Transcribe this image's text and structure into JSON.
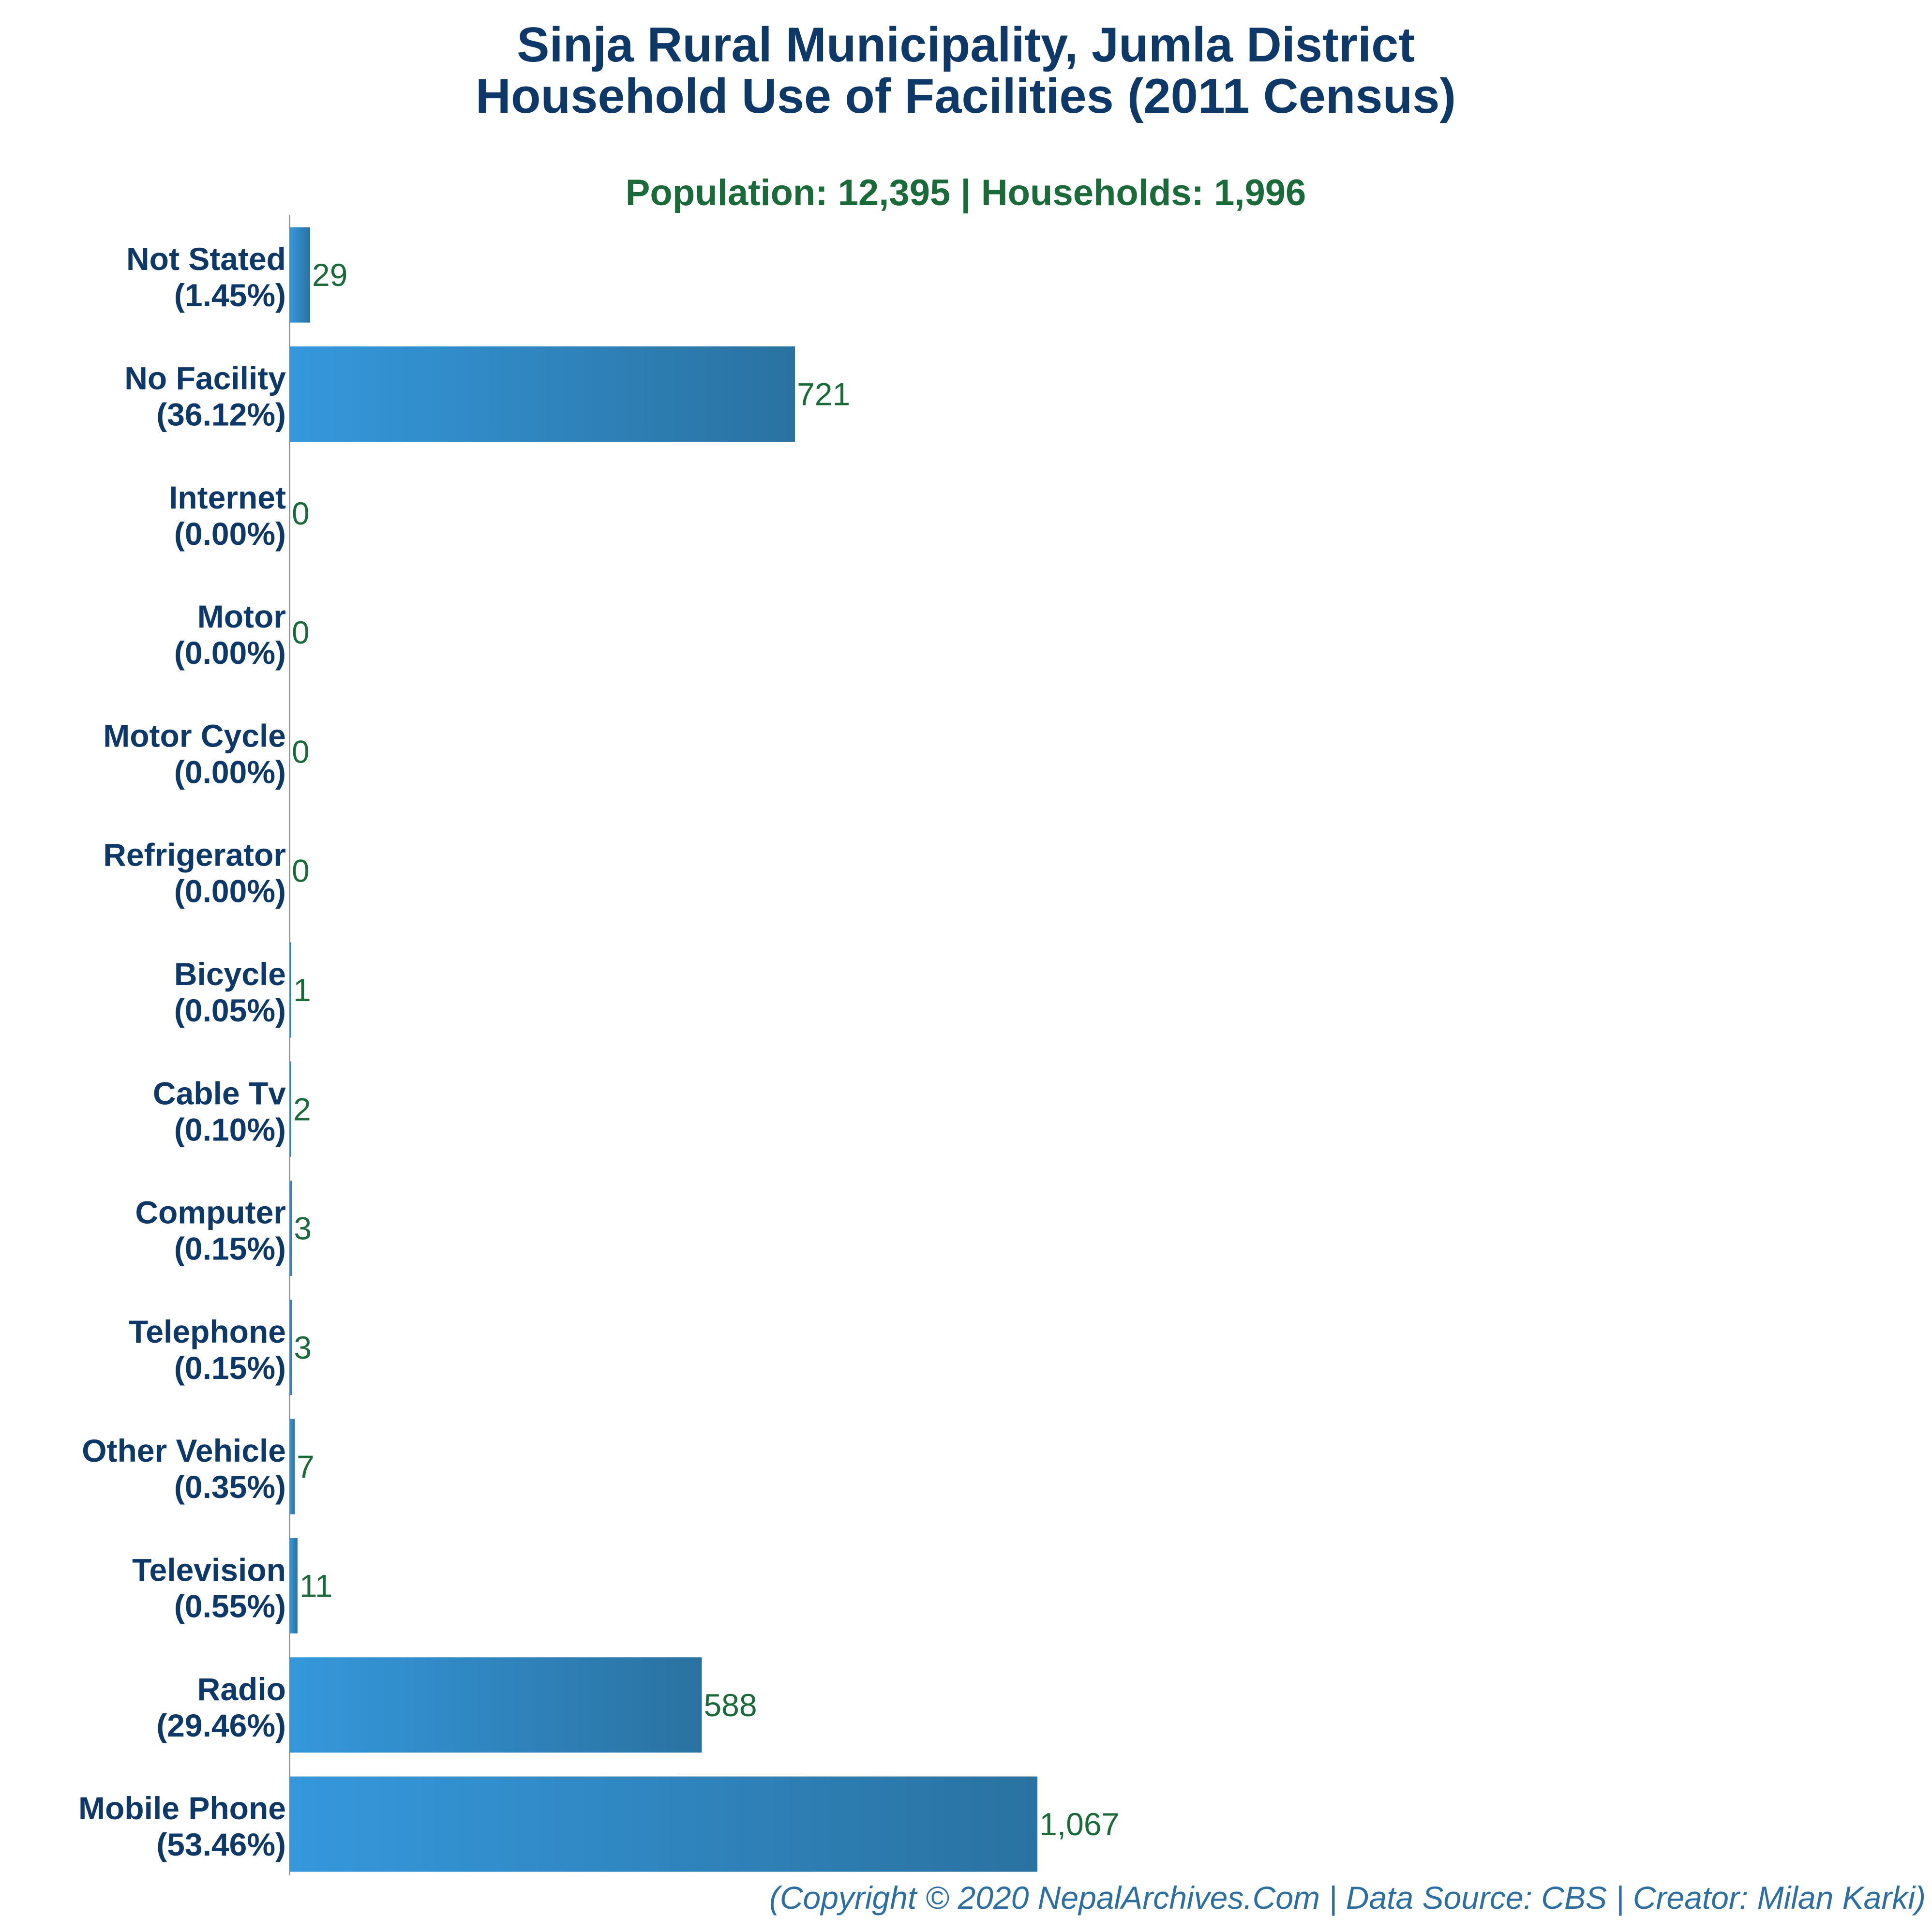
{
  "colors": {
    "title": "#0d3868",
    "subtitle": "#1b6b3a",
    "value": "#1b6b3a",
    "footer": "#2d6ea3",
    "bar_light": "#3598dc",
    "bar_dark": "#2a72a1",
    "axis": "#7f7f7f"
  },
  "chart_data": {
    "type": "bar",
    "orientation": "horizontal",
    "title": "Sinja Rural Municipality, Jumla District",
    "title_line2": "Household Use of Facilities (2011 Census)",
    "subtitle": "Population: 12,395 | Households: 1,996",
    "categories": [
      "Not Stated",
      "No Facility",
      "Internet",
      "Motor",
      "Motor Cycle",
      "Refrigerator",
      "Bicycle",
      "Cable Tv",
      "Computer",
      "Telephone",
      "Other Vehicle",
      "Television",
      "Radio",
      "Mobile Phone"
    ],
    "percent_labels": [
      "(1.45%)",
      "(36.12%)",
      "(0.00%)",
      "(0.00%)",
      "(0.00%)",
      "(0.00%)",
      "(0.05%)",
      "(0.10%)",
      "(0.15%)",
      "(0.15%)",
      "(0.35%)",
      "(0.55%)",
      "(29.46%)",
      "(53.46%)"
    ],
    "values": [
      29,
      721,
      0,
      0,
      0,
      0,
      1,
      2,
      3,
      3,
      7,
      11,
      588,
      1067
    ],
    "value_labels": [
      "29",
      "721",
      "0",
      "0",
      "0",
      "0",
      "1",
      "2",
      "3",
      "3",
      "7",
      "11",
      "588",
      "1,067"
    ],
    "xlim": [
      0,
      2100
    ],
    "grid": false,
    "legend": "none"
  },
  "footer": "(Copyright © 2020 NepalArchives.Com | Data Source: CBS | Creator: Milan Karki)"
}
